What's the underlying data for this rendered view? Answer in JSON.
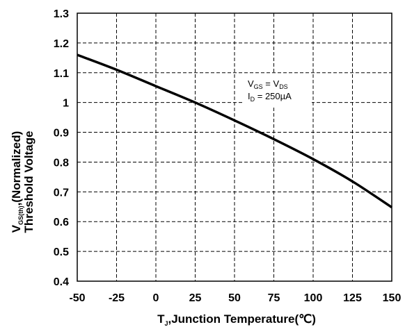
{
  "chart_data": {
    "type": "line",
    "xlabel_main": "T",
    "xlabel_sub": "J",
    "xlabel_rest": ",Junction Temperature(℃)",
    "ylabel_line1_main": "V",
    "ylabel_line1_sub": "GS(th)",
    "ylabel_line1_rest": ",(Normalized)",
    "ylabel_line2": "Threshold Voltage",
    "xlim": [
      -50,
      150
    ],
    "ylim": [
      0.4,
      1.3
    ],
    "xticks": [
      -50,
      -25,
      0,
      25,
      50,
      75,
      100,
      125,
      150
    ],
    "yticks": [
      0.4,
      0.5,
      0.6,
      0.7,
      0.8,
      0.9,
      1,
      1.1,
      1.2,
      1.3
    ],
    "xtick_labels": [
      "-50",
      "-25",
      "0",
      "25",
      "50",
      "75",
      "100",
      "125",
      "150"
    ],
    "ytick_labels": [
      "0.4",
      "0.5",
      "0.6",
      "0.7",
      "0.8",
      "0.9",
      "1",
      "1.1",
      "1.2",
      "1.3"
    ],
    "grid": "dashed",
    "annotation": {
      "line1": {
        "a": "V",
        "a_sub": "GS",
        "mid": " = V",
        "b_sub": "DS"
      },
      "line2": {
        "a": "I",
        "a_sub": "D",
        "rest": " = 250µA"
      }
    },
    "series": [
      {
        "x": [
          -50,
          -25,
          0,
          25,
          50,
          75,
          100,
          125,
          150
        ],
        "y": [
          1.16,
          1.11,
          1.055,
          1.0,
          0.94,
          0.877,
          0.81,
          0.735,
          0.648
        ]
      }
    ]
  }
}
